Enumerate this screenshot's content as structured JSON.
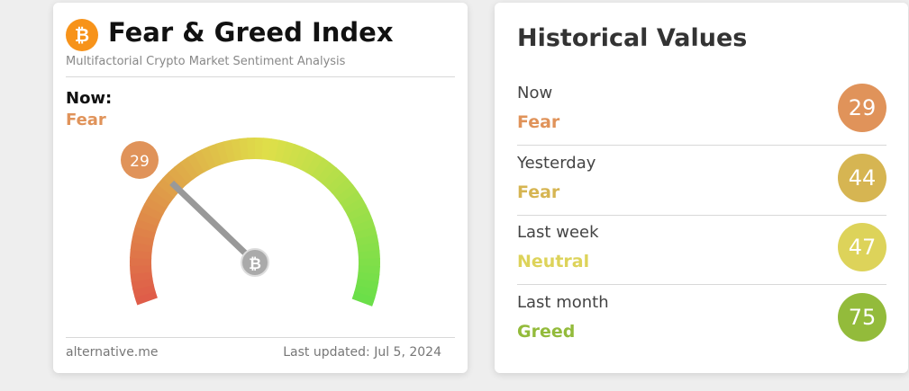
{
  "widget": {
    "title": "Fear & Greed Index",
    "subtitle": "Multifactorial Crypto Market Sentiment Analysis",
    "now_label": "Now:",
    "classification": "Fear",
    "value": 29,
    "color": "#e0935a",
    "scale": [
      0,
      100
    ],
    "source": "alternative.me",
    "updated": "Last updated: Jul 5, 2024"
  },
  "history": {
    "title": "Historical Values",
    "rows": [
      {
        "label": "Now",
        "classification": "Fear",
        "value": 29,
        "color": "#e0935a"
      },
      {
        "label": "Yesterday",
        "classification": "Fear",
        "value": 44,
        "color": "#d6b552"
      },
      {
        "label": "Last week",
        "classification": "Neutral",
        "value": 47,
        "color": "#ddd35a"
      },
      {
        "label": "Last month",
        "classification": "Greed",
        "value": 75,
        "color": "#93bb3b"
      }
    ]
  }
}
